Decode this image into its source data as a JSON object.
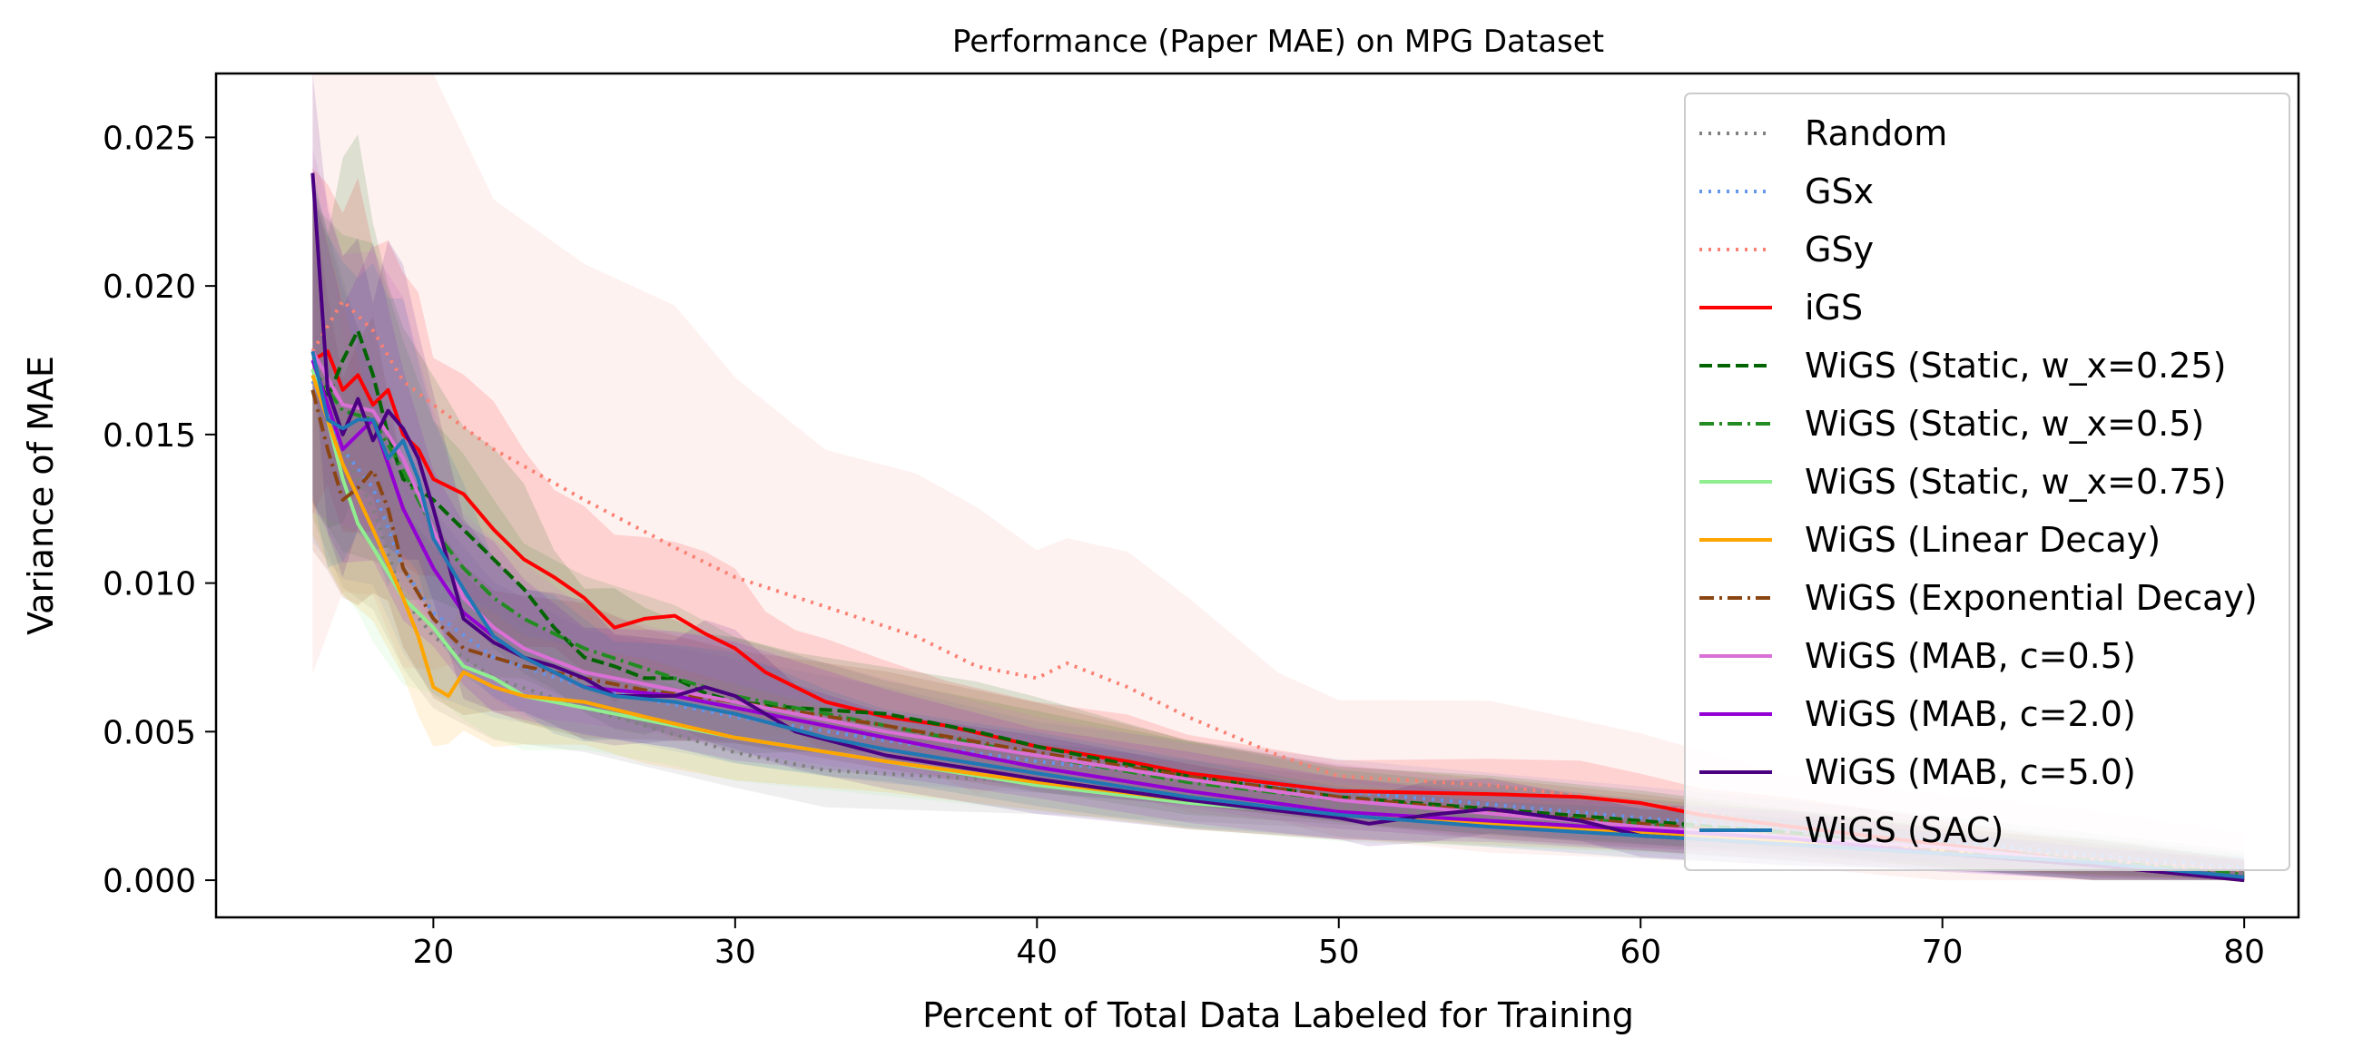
{
  "chart_data": {
    "type": "line",
    "title": "Performance (Paper MAE) on MPG Dataset",
    "xlabel": "Percent of Total Data Labeled for Training",
    "ylabel": "Variance of MAE",
    "xlim": [
      12.8,
      81.8
    ],
    "ylim": [
      -0.00125,
      0.02715
    ],
    "xticks": [
      20,
      30,
      40,
      50,
      60,
      70,
      80
    ],
    "yticks": [
      0.0,
      0.005,
      0.01,
      0.015,
      0.02,
      0.025
    ],
    "xtick_labels": [
      "20",
      "30",
      "40",
      "50",
      "60",
      "70",
      "80"
    ],
    "ytick_labels": [
      "0.000",
      "0.005",
      "0.010",
      "0.015",
      "0.020",
      "0.025"
    ],
    "grid": false,
    "legend_position": "top-right",
    "shaded_bands": true,
    "series": [
      {
        "name": "Random",
        "color": "#808080",
        "style": "dotted",
        "x": [
          16,
          17,
          18,
          19,
          20,
          22,
          25,
          30,
          33,
          40,
          50,
          60,
          70,
          80
        ],
        "y": [
          0.0172,
          0.0145,
          0.0125,
          0.0095,
          0.0082,
          0.0068,
          0.0058,
          0.0043,
          0.0037,
          0.0033,
          0.0025,
          0.0017,
          0.001,
          0.0
        ]
      },
      {
        "name": "GSx",
        "color": "#6495ED",
        "style": "dotted",
        "x": [
          16,
          17,
          18,
          19,
          20,
          22,
          25,
          30,
          35,
          40,
          50,
          60,
          70,
          80
        ],
        "y": [
          0.0168,
          0.0145,
          0.0132,
          0.0105,
          0.009,
          0.0075,
          0.0065,
          0.0055,
          0.0047,
          0.004,
          0.003,
          0.0021,
          0.0013,
          0.0004
        ]
      },
      {
        "name": "GSy",
        "color": "#FA8072",
        "style": "dotted",
        "x": [
          16,
          17,
          18,
          19,
          20,
          22,
          25,
          28,
          30,
          33,
          36,
          38,
          40,
          41,
          43,
          45,
          48,
          50,
          55,
          60,
          65,
          70,
          75,
          80
        ],
        "y": [
          0.0178,
          0.0195,
          0.0185,
          0.0168,
          0.016,
          0.0145,
          0.0128,
          0.0112,
          0.0102,
          0.0092,
          0.0082,
          0.0072,
          0.0068,
          0.0073,
          0.0065,
          0.0055,
          0.0042,
          0.0035,
          0.0032,
          0.0026,
          0.0018,
          0.0012,
          0.0007,
          0.0003
        ]
      },
      {
        "name": "iGS",
        "color": "#FF0000",
        "style": "solid",
        "x": [
          16,
          16.5,
          17,
          17.5,
          18,
          18.5,
          19,
          19.5,
          20,
          21,
          22,
          23,
          24,
          25,
          26,
          27,
          28,
          29,
          30,
          31,
          32,
          33,
          35,
          37,
          40,
          43,
          45,
          50,
          55,
          58,
          60,
          62,
          65,
          70,
          75,
          80
        ],
        "y": [
          0.0175,
          0.0178,
          0.0165,
          0.017,
          0.016,
          0.0165,
          0.015,
          0.0145,
          0.0135,
          0.013,
          0.0118,
          0.0108,
          0.0102,
          0.0095,
          0.0085,
          0.0088,
          0.0089,
          0.0083,
          0.0078,
          0.007,
          0.0065,
          0.006,
          0.0055,
          0.0052,
          0.0045,
          0.004,
          0.0036,
          0.003,
          0.0029,
          0.0028,
          0.0026,
          0.0022,
          0.0018,
          0.0012,
          0.0006,
          0.0001
        ]
      },
      {
        "name": "WiGS (Static, w_x=0.25)",
        "color": "#006400",
        "style": "dashed",
        "x": [
          16,
          16.5,
          17,
          17.5,
          18,
          18.5,
          19,
          20,
          21,
          22,
          23,
          24,
          25,
          26,
          27,
          28,
          29,
          30,
          32,
          35,
          38,
          40,
          45,
          50,
          55,
          60,
          65,
          70,
          75,
          80
        ],
        "y": [
          0.0172,
          0.0162,
          0.0175,
          0.0185,
          0.017,
          0.015,
          0.0135,
          0.0128,
          0.0118,
          0.0108,
          0.0098,
          0.0085,
          0.0075,
          0.0072,
          0.0068,
          0.0068,
          0.0063,
          0.006,
          0.0058,
          0.0056,
          0.005,
          0.0045,
          0.0035,
          0.0028,
          0.0024,
          0.002,
          0.0016,
          0.001,
          0.0006,
          0.0001
        ]
      },
      {
        "name": "WiGS (Static, w_x=0.5)",
        "color": "#228B22",
        "style": "dashdot",
        "x": [
          16,
          17,
          18,
          19,
          20,
          21,
          22,
          23,
          25,
          28,
          30,
          35,
          40,
          45,
          50,
          60,
          70,
          80
        ],
        "y": [
          0.0172,
          0.0158,
          0.0155,
          0.0138,
          0.0118,
          0.0105,
          0.0095,
          0.0088,
          0.0078,
          0.0068,
          0.0062,
          0.0052,
          0.0042,
          0.0033,
          0.0027,
          0.0019,
          0.0011,
          0.0002
        ]
      },
      {
        "name": "WiGS (Static, w_x=0.75)",
        "color": "#90EE90",
        "style": "solid",
        "x": [
          16,
          16.5,
          17,
          17.5,
          18,
          19,
          20,
          21,
          22,
          23,
          25,
          28,
          30,
          35,
          40,
          45,
          50,
          60,
          70,
          80
        ],
        "y": [
          0.0172,
          0.0155,
          0.0135,
          0.012,
          0.0112,
          0.0095,
          0.0085,
          0.0072,
          0.0068,
          0.0062,
          0.0058,
          0.0052,
          0.0048,
          0.004,
          0.0032,
          0.0026,
          0.0022,
          0.0016,
          0.001,
          0.0
        ]
      },
      {
        "name": "WiGS (Linear Decay)",
        "color": "#FFA500",
        "style": "solid",
        "x": [
          16,
          17,
          18,
          19,
          19.5,
          20,
          20.5,
          21,
          22,
          23,
          25,
          27,
          30,
          35,
          40,
          45,
          50,
          60,
          70,
          80
        ],
        "y": [
          0.017,
          0.014,
          0.0118,
          0.0095,
          0.0082,
          0.0065,
          0.0062,
          0.007,
          0.0065,
          0.0062,
          0.006,
          0.0055,
          0.0048,
          0.004,
          0.0033,
          0.0027,
          0.0022,
          0.0016,
          0.001,
          0.0
        ]
      },
      {
        "name": "WiGS (Exponential Decay)",
        "color": "#8B4513",
        "style": "dashdot",
        "x": [
          16,
          16.5,
          17,
          17.5,
          18,
          18.5,
          19,
          20,
          21,
          22,
          23,
          25,
          27,
          30,
          35,
          40,
          45,
          50,
          55,
          60,
          65,
          70,
          75,
          80
        ],
        "y": [
          0.0165,
          0.0145,
          0.0128,
          0.0132,
          0.0138,
          0.0125,
          0.0105,
          0.0088,
          0.0078,
          0.0075,
          0.0072,
          0.0068,
          0.0064,
          0.006,
          0.0052,
          0.0043,
          0.0035,
          0.0028,
          0.0023,
          0.0019,
          0.0015,
          0.001,
          0.0006,
          0.0001
        ]
      },
      {
        "name": "WiGS (MAB, c=0.5)",
        "color": "#DA70D6",
        "style": "solid",
        "x": [
          16,
          17,
          18,
          19,
          20,
          21,
          22,
          23,
          25,
          28,
          30,
          35,
          40,
          45,
          50,
          60,
          70,
          80
        ],
        "y": [
          0.0178,
          0.016,
          0.0158,
          0.0142,
          0.0118,
          0.0095,
          0.0085,
          0.0078,
          0.007,
          0.0064,
          0.006,
          0.005,
          0.0042,
          0.0034,
          0.0027,
          0.0018,
          0.0011,
          0.0001
        ]
      },
      {
        "name": "WiGS (MAB, c=2.0)",
        "color": "#9400D3",
        "style": "solid",
        "x": [
          16,
          17,
          18,
          19,
          20,
          21,
          22,
          23,
          25,
          28,
          30,
          35,
          40,
          45,
          50,
          55,
          60,
          65,
          70,
          75,
          80
        ],
        "y": [
          0.0175,
          0.0145,
          0.0155,
          0.0125,
          0.0105,
          0.009,
          0.0082,
          0.0075,
          0.0065,
          0.0062,
          0.0058,
          0.0048,
          0.0038,
          0.003,
          0.0023,
          0.002,
          0.0017,
          0.0014,
          0.0009,
          0.0005,
          0.0001
        ]
      },
      {
        "name": "WiGS (MAB, c=5.0)",
        "color": "#4B0082",
        "style": "solid",
        "x": [
          16,
          16.5,
          17,
          17.5,
          18,
          18.5,
          19,
          19.5,
          20,
          21,
          22,
          23,
          24,
          25,
          26,
          28,
          29,
          30,
          32,
          35,
          40,
          45,
          50,
          51,
          53,
          55,
          58,
          60,
          65,
          70,
          75,
          80
        ],
        "y": [
          0.0238,
          0.0165,
          0.015,
          0.0162,
          0.0148,
          0.0158,
          0.0152,
          0.0142,
          0.0125,
          0.0088,
          0.008,
          0.0075,
          0.0072,
          0.0068,
          0.0062,
          0.0062,
          0.0065,
          0.0062,
          0.005,
          0.0042,
          0.0034,
          0.0027,
          0.0021,
          0.0019,
          0.0022,
          0.0024,
          0.002,
          0.0015,
          0.0012,
          0.0009,
          0.0005,
          0.0
        ]
      },
      {
        "name": "WiGS (SAC)",
        "color": "#1F77B4",
        "style": "solid",
        "x": [
          16,
          16.5,
          17,
          17.5,
          18,
          18.5,
          19,
          19.5,
          20,
          21,
          22,
          23,
          24,
          25,
          26,
          28,
          30,
          33,
          35,
          40,
          45,
          50,
          55,
          60,
          65,
          70,
          75,
          80
        ],
        "y": [
          0.0178,
          0.0155,
          0.0152,
          0.0155,
          0.0155,
          0.0142,
          0.0148,
          0.0135,
          0.0115,
          0.0098,
          0.0082,
          0.0075,
          0.007,
          0.0065,
          0.0062,
          0.006,
          0.0056,
          0.0048,
          0.0044,
          0.0036,
          0.0028,
          0.0022,
          0.0018,
          0.0015,
          0.0012,
          0.0009,
          0.0006,
          0.0001
        ]
      }
    ]
  }
}
